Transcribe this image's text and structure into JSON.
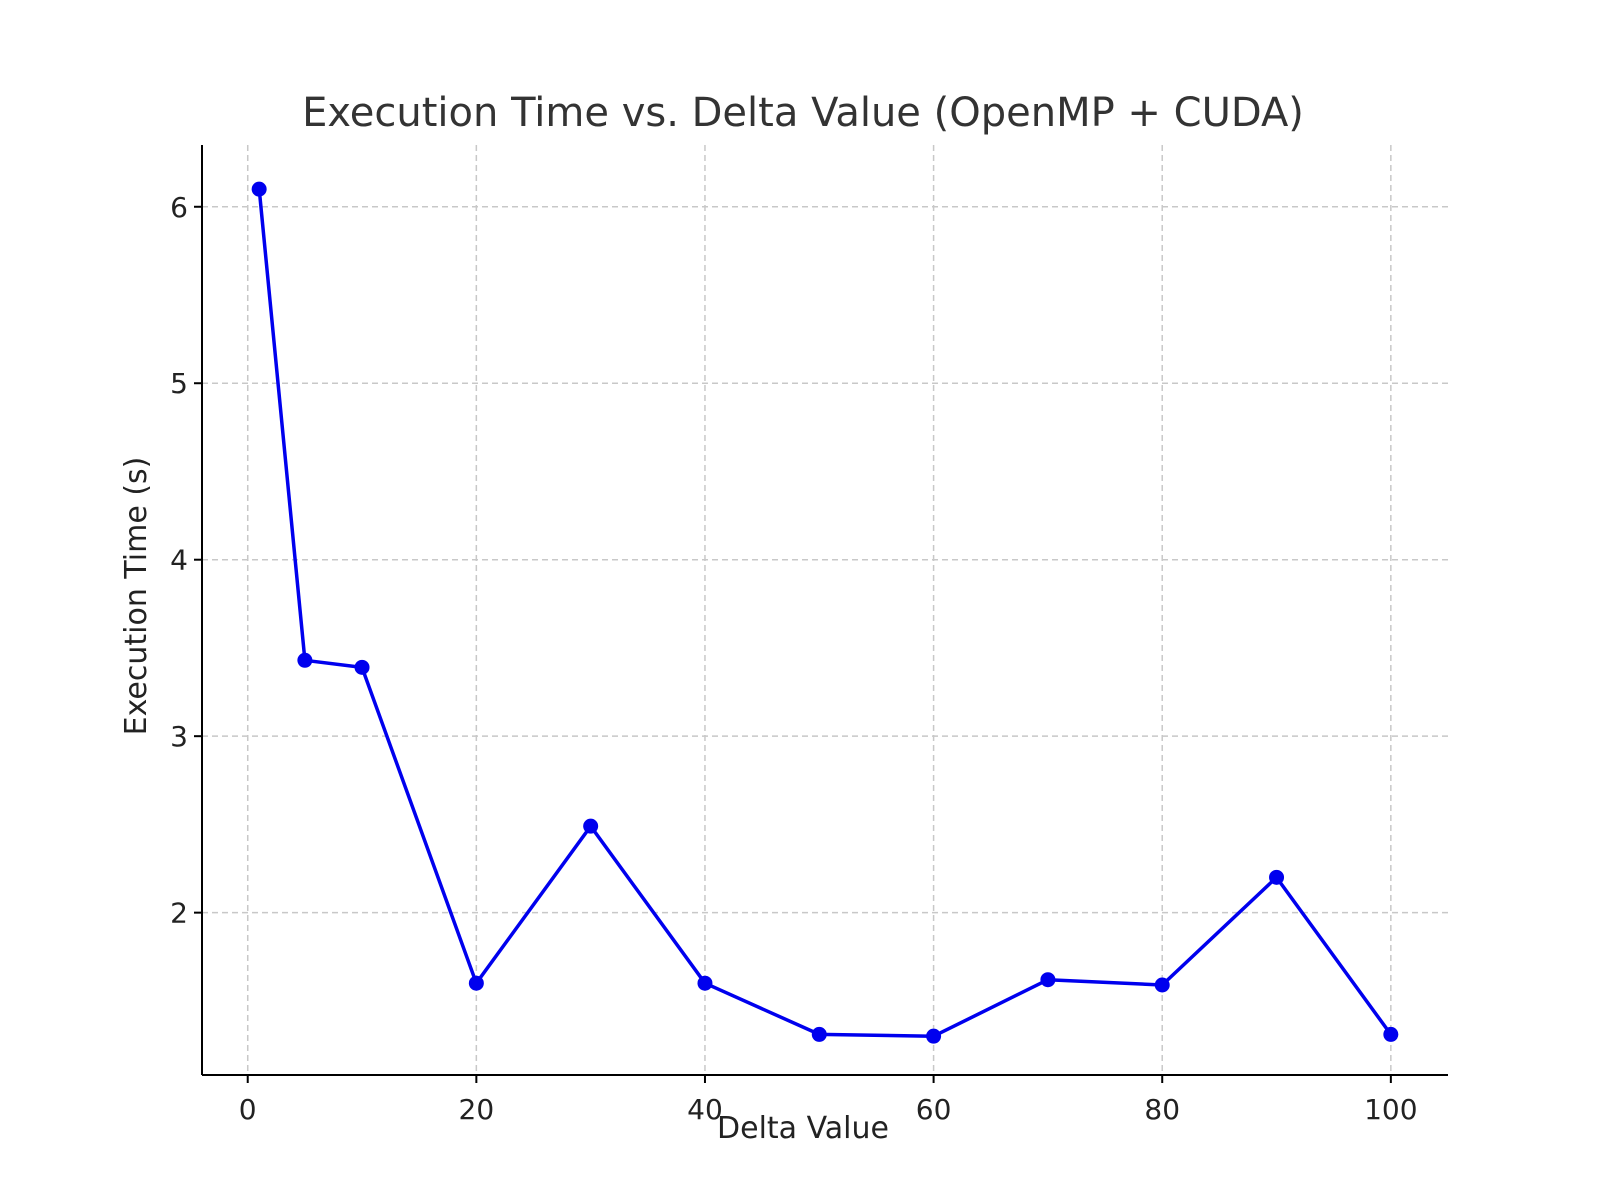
{
  "chart_data": {
    "type": "line",
    "title": "Execution Time vs. Delta Value (OpenMP + CUDA)",
    "xlabel": "Delta Value",
    "ylabel": "Execution Time (s)",
    "xlim": [
      -4,
      105
    ],
    "ylim": [
      1.08,
      6.35
    ],
    "xticks": [
      0,
      20,
      40,
      60,
      80,
      100
    ],
    "yticks": [
      2,
      3,
      4,
      5,
      6
    ],
    "grid": true,
    "series": [
      {
        "color": "#0000ee",
        "marker": "circle",
        "x": [
          1,
          5,
          10,
          20,
          30,
          40,
          50,
          60,
          70,
          80,
          90,
          100
        ],
        "y": [
          6.1,
          3.43,
          3.39,
          1.6,
          2.49,
          1.6,
          1.31,
          1.3,
          1.62,
          1.59,
          2.2,
          1.31
        ]
      }
    ]
  }
}
